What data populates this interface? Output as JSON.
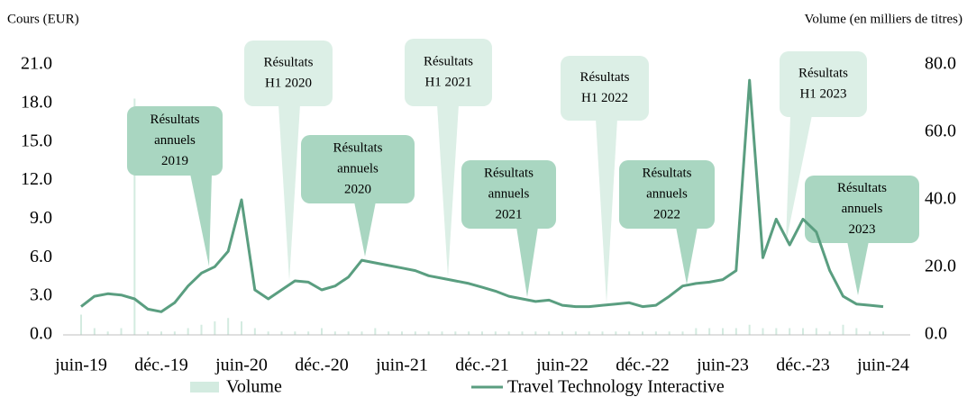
{
  "chart_data": {
    "type": "line",
    "y_label": "Cours (EUR)",
    "y2_label": "Volume (en milliers de titres)",
    "xlim": [
      "2019-06",
      "2024-06"
    ],
    "xticks": [
      {
        "value": "2019-06",
        "label": "juin-19"
      },
      {
        "value": "2019-12",
        "label": "déc.-19"
      },
      {
        "value": "2020-06",
        "label": "juin-20"
      },
      {
        "value": "2020-12",
        "label": "déc.-20"
      },
      {
        "value": "2021-06",
        "label": "juin-21"
      },
      {
        "value": "2021-12",
        "label": "déc.-21"
      },
      {
        "value": "2022-06",
        "label": "juin-22"
      },
      {
        "value": "2022-12",
        "label": "déc.-22"
      },
      {
        "value": "2023-06",
        "label": "juin-23"
      },
      {
        "value": "2023-12",
        "label": "déc.-23"
      },
      {
        "value": "2024-06",
        "label": "juin-24"
      }
    ],
    "ylim": [
      0,
      21
    ],
    "yticks": [
      {
        "value": 0,
        "label": "0.0"
      },
      {
        "value": 3,
        "label": "3.0"
      },
      {
        "value": 6,
        "label": "6.0"
      },
      {
        "value": 9,
        "label": "9.0"
      },
      {
        "value": 12,
        "label": "12.0"
      },
      {
        "value": 15,
        "label": "15.0"
      },
      {
        "value": 18,
        "label": "18.0"
      },
      {
        "value": 21,
        "label": "21.0"
      }
    ],
    "y2lim": [
      0,
      80
    ],
    "y2ticks": [
      {
        "value": 0,
        "label": "0.0"
      },
      {
        "value": 20,
        "label": "20.0"
      },
      {
        "value": 40,
        "label": "40.0"
      },
      {
        "value": 60,
        "label": "60.0"
      },
      {
        "value": 80,
        "label": "80.0"
      }
    ],
    "x": [
      "2019-06",
      "2019-07",
      "2019-08",
      "2019-09",
      "2019-10",
      "2019-11",
      "2019-12",
      "2020-01",
      "2020-02",
      "2020-03",
      "2020-04",
      "2020-05",
      "2020-06",
      "2020-07",
      "2020-08",
      "2020-09",
      "2020-10",
      "2020-11",
      "2020-12",
      "2021-01",
      "2021-02",
      "2021-03",
      "2021-04",
      "2021-05",
      "2021-06",
      "2021-07",
      "2021-08",
      "2021-09",
      "2021-10",
      "2021-11",
      "2021-12",
      "2022-01",
      "2022-02",
      "2022-03",
      "2022-04",
      "2022-05",
      "2022-06",
      "2022-07",
      "2022-08",
      "2022-09",
      "2022-10",
      "2022-11",
      "2022-12",
      "2023-01",
      "2023-02",
      "2023-03",
      "2023-04",
      "2023-05",
      "2023-06",
      "2023-07",
      "2023-08",
      "2023-09",
      "2023-10",
      "2023-11",
      "2023-12",
      "2024-01",
      "2024-02",
      "2024-03",
      "2024-04",
      "2024-05",
      "2024-06"
    ],
    "series": [
      {
        "name": "Volume",
        "type": "bar",
        "axis": "y2",
        "color": "#d3ebe0",
        "values": [
          6,
          2,
          1,
          2,
          70,
          1,
          1,
          1,
          2,
          3,
          4,
          5,
          4,
          2,
          1,
          1,
          1,
          1,
          2,
          1,
          1,
          1,
          2,
          1,
          1,
          1,
          1,
          1,
          1,
          1,
          1,
          1,
          1,
          1,
          1,
          1,
          1,
          1,
          1,
          1,
          1,
          1,
          1,
          1,
          1,
          1,
          2,
          2,
          2,
          2,
          3,
          2,
          2,
          2,
          2,
          2,
          1,
          3,
          2,
          1,
          1
        ]
      },
      {
        "name": "Travel Technology Interactive",
        "type": "line",
        "color": "#5a9e80",
        "values": [
          2.2,
          3.0,
          3.2,
          3.1,
          2.8,
          2.0,
          1.8,
          2.5,
          3.8,
          4.8,
          5.3,
          6.5,
          10.5,
          3.5,
          2.8,
          3.5,
          4.2,
          4.1,
          3.5,
          3.8,
          4.5,
          5.8,
          5.6,
          5.4,
          5.2,
          5.0,
          4.6,
          4.4,
          4.2,
          4.0,
          3.7,
          3.4,
          3.0,
          2.8,
          2.6,
          2.7,
          2.3,
          2.2,
          2.2,
          2.3,
          2.4,
          2.5,
          2.2,
          2.3,
          3.0,
          3.8,
          4.0,
          4.1,
          4.3,
          5.0,
          19.8,
          6.0,
          9.0,
          7.0,
          9.0,
          8.0,
          5.0,
          3.0,
          2.4,
          2.3,
          2.2
        ]
      }
    ],
    "annotations": [
      {
        "lines": [
          "Résultats",
          "annuels",
          "2019"
        ],
        "color": "#a9d6c1"
      },
      {
        "lines": [
          "Résultats",
          "H1 2020"
        ],
        "color": "#dcefe6"
      },
      {
        "lines": [
          "Résultats",
          "annuels",
          "2020"
        ],
        "color": "#a9d6c1"
      },
      {
        "lines": [
          "Résultats",
          "H1 2021"
        ],
        "color": "#dcefe6"
      },
      {
        "lines": [
          "Résultats",
          "annuels",
          "2021"
        ],
        "color": "#a9d6c1"
      },
      {
        "lines": [
          "Résultats",
          "H1 2022"
        ],
        "color": "#dcefe6"
      },
      {
        "lines": [
          "Résultats",
          "annuels",
          "2022"
        ],
        "color": "#a9d6c1"
      },
      {
        "lines": [
          "Résultats",
          "H1 2023"
        ],
        "color": "#dcefe6"
      },
      {
        "lines": [
          "Résultats",
          "annuels",
          "2023"
        ],
        "color": "#a9d6c1"
      }
    ]
  }
}
